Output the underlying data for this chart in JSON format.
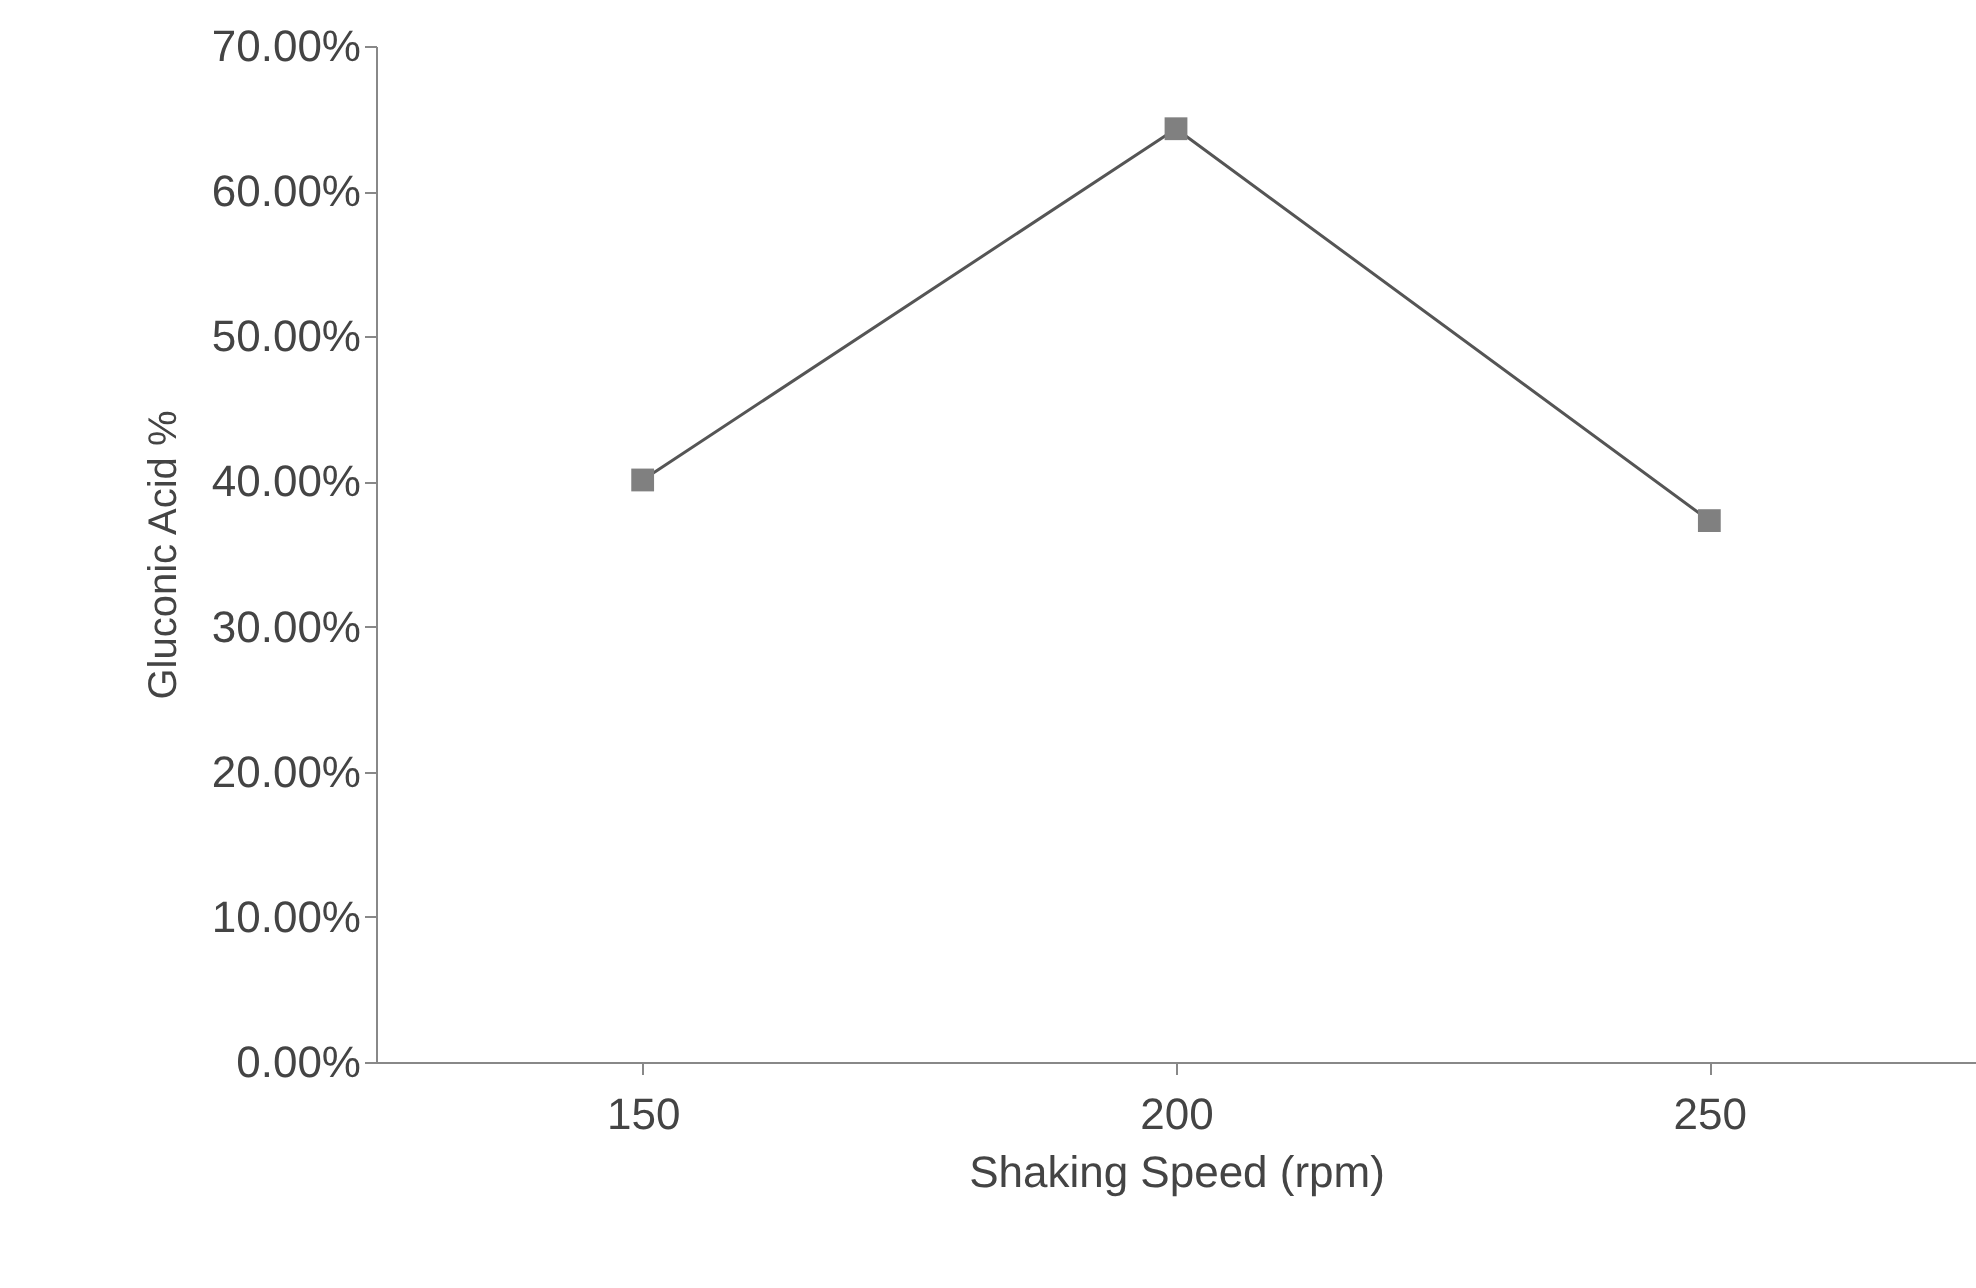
{
  "chart_data": {
    "type": "line",
    "xlabel": "Shaking Speed (rpm)",
    "ylabel": "Gluconic Acid %",
    "categories": [
      "150",
      "200",
      "250"
    ],
    "series": [
      {
        "color": "#555555",
        "values": [
          40.1,
          64.3,
          37.3
        ]
      }
    ],
    "marker": "square",
    "line_style": "solid",
    "grid": false,
    "legend": false,
    "ylim": [
      0,
      70
    ],
    "yticks": [
      {
        "value": 0,
        "label": "0.00%"
      },
      {
        "value": 10,
        "label": "10.00%"
      },
      {
        "value": 20,
        "label": "20.00%"
      },
      {
        "value": 30,
        "label": "30.00%"
      },
      {
        "value": 40,
        "label": "40.00%"
      },
      {
        "value": 50,
        "label": "50.00%"
      },
      {
        "value": 60,
        "label": "60.00%"
      },
      {
        "value": 70,
        "label": "70.00%"
      }
    ]
  }
}
